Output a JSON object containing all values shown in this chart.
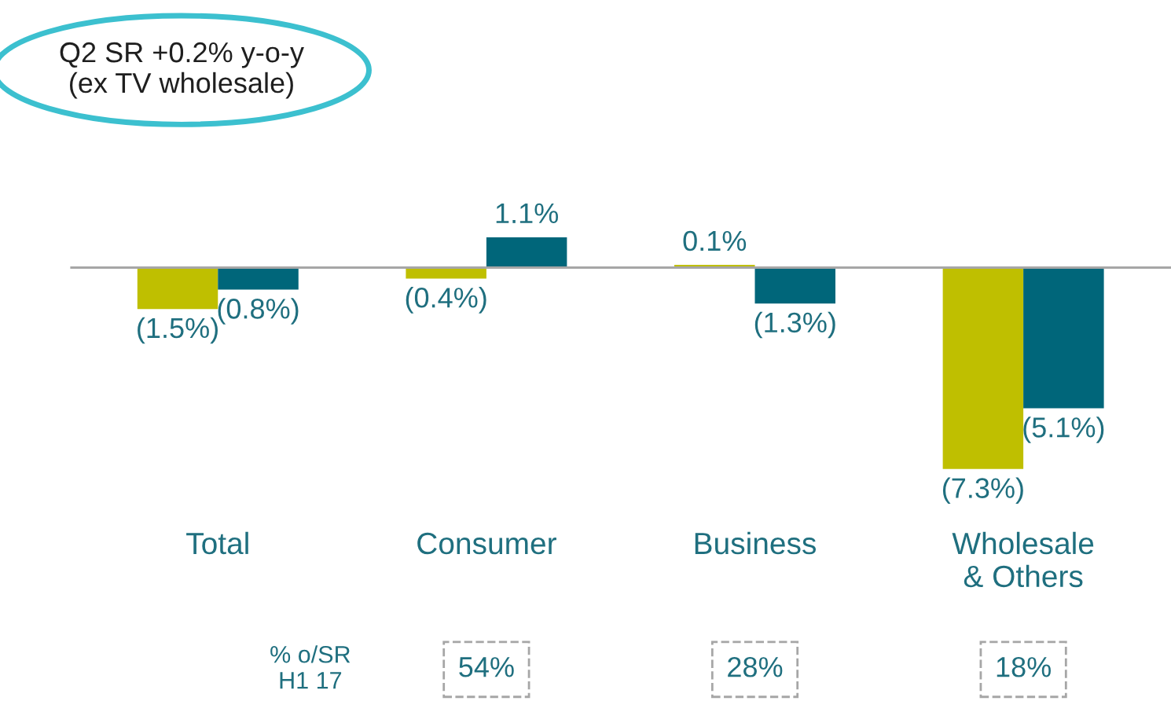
{
  "chart_data": {
    "type": "bar",
    "categories": [
      "Total",
      "Consumer",
      "Business",
      "Wholesale\n& Others"
    ],
    "series": [
      {
        "color": "#bfbf00",
        "values": [
          -1.5,
          -0.4,
          0.1,
          -7.3
        ],
        "value_labels": [
          "(1.5%)",
          "(0.4%)",
          "0.1%",
          "(7.3%)"
        ]
      },
      {
        "color": "#00667a",
        "values": [
          -0.8,
          1.1,
          -1.3,
          -5.1
        ],
        "value_labels": [
          "(0.8%)",
          "1.1%",
          "(1.3%)",
          "(5.1%)"
        ]
      }
    ],
    "annotations": [
      "Q2 SR +0.2% y-o-y\n(ex TV wholesale)",
      "% o/SR\nH1 17",
      "54%",
      "28%",
      "18%"
    ],
    "grid": false,
    "legend": false
  }
}
